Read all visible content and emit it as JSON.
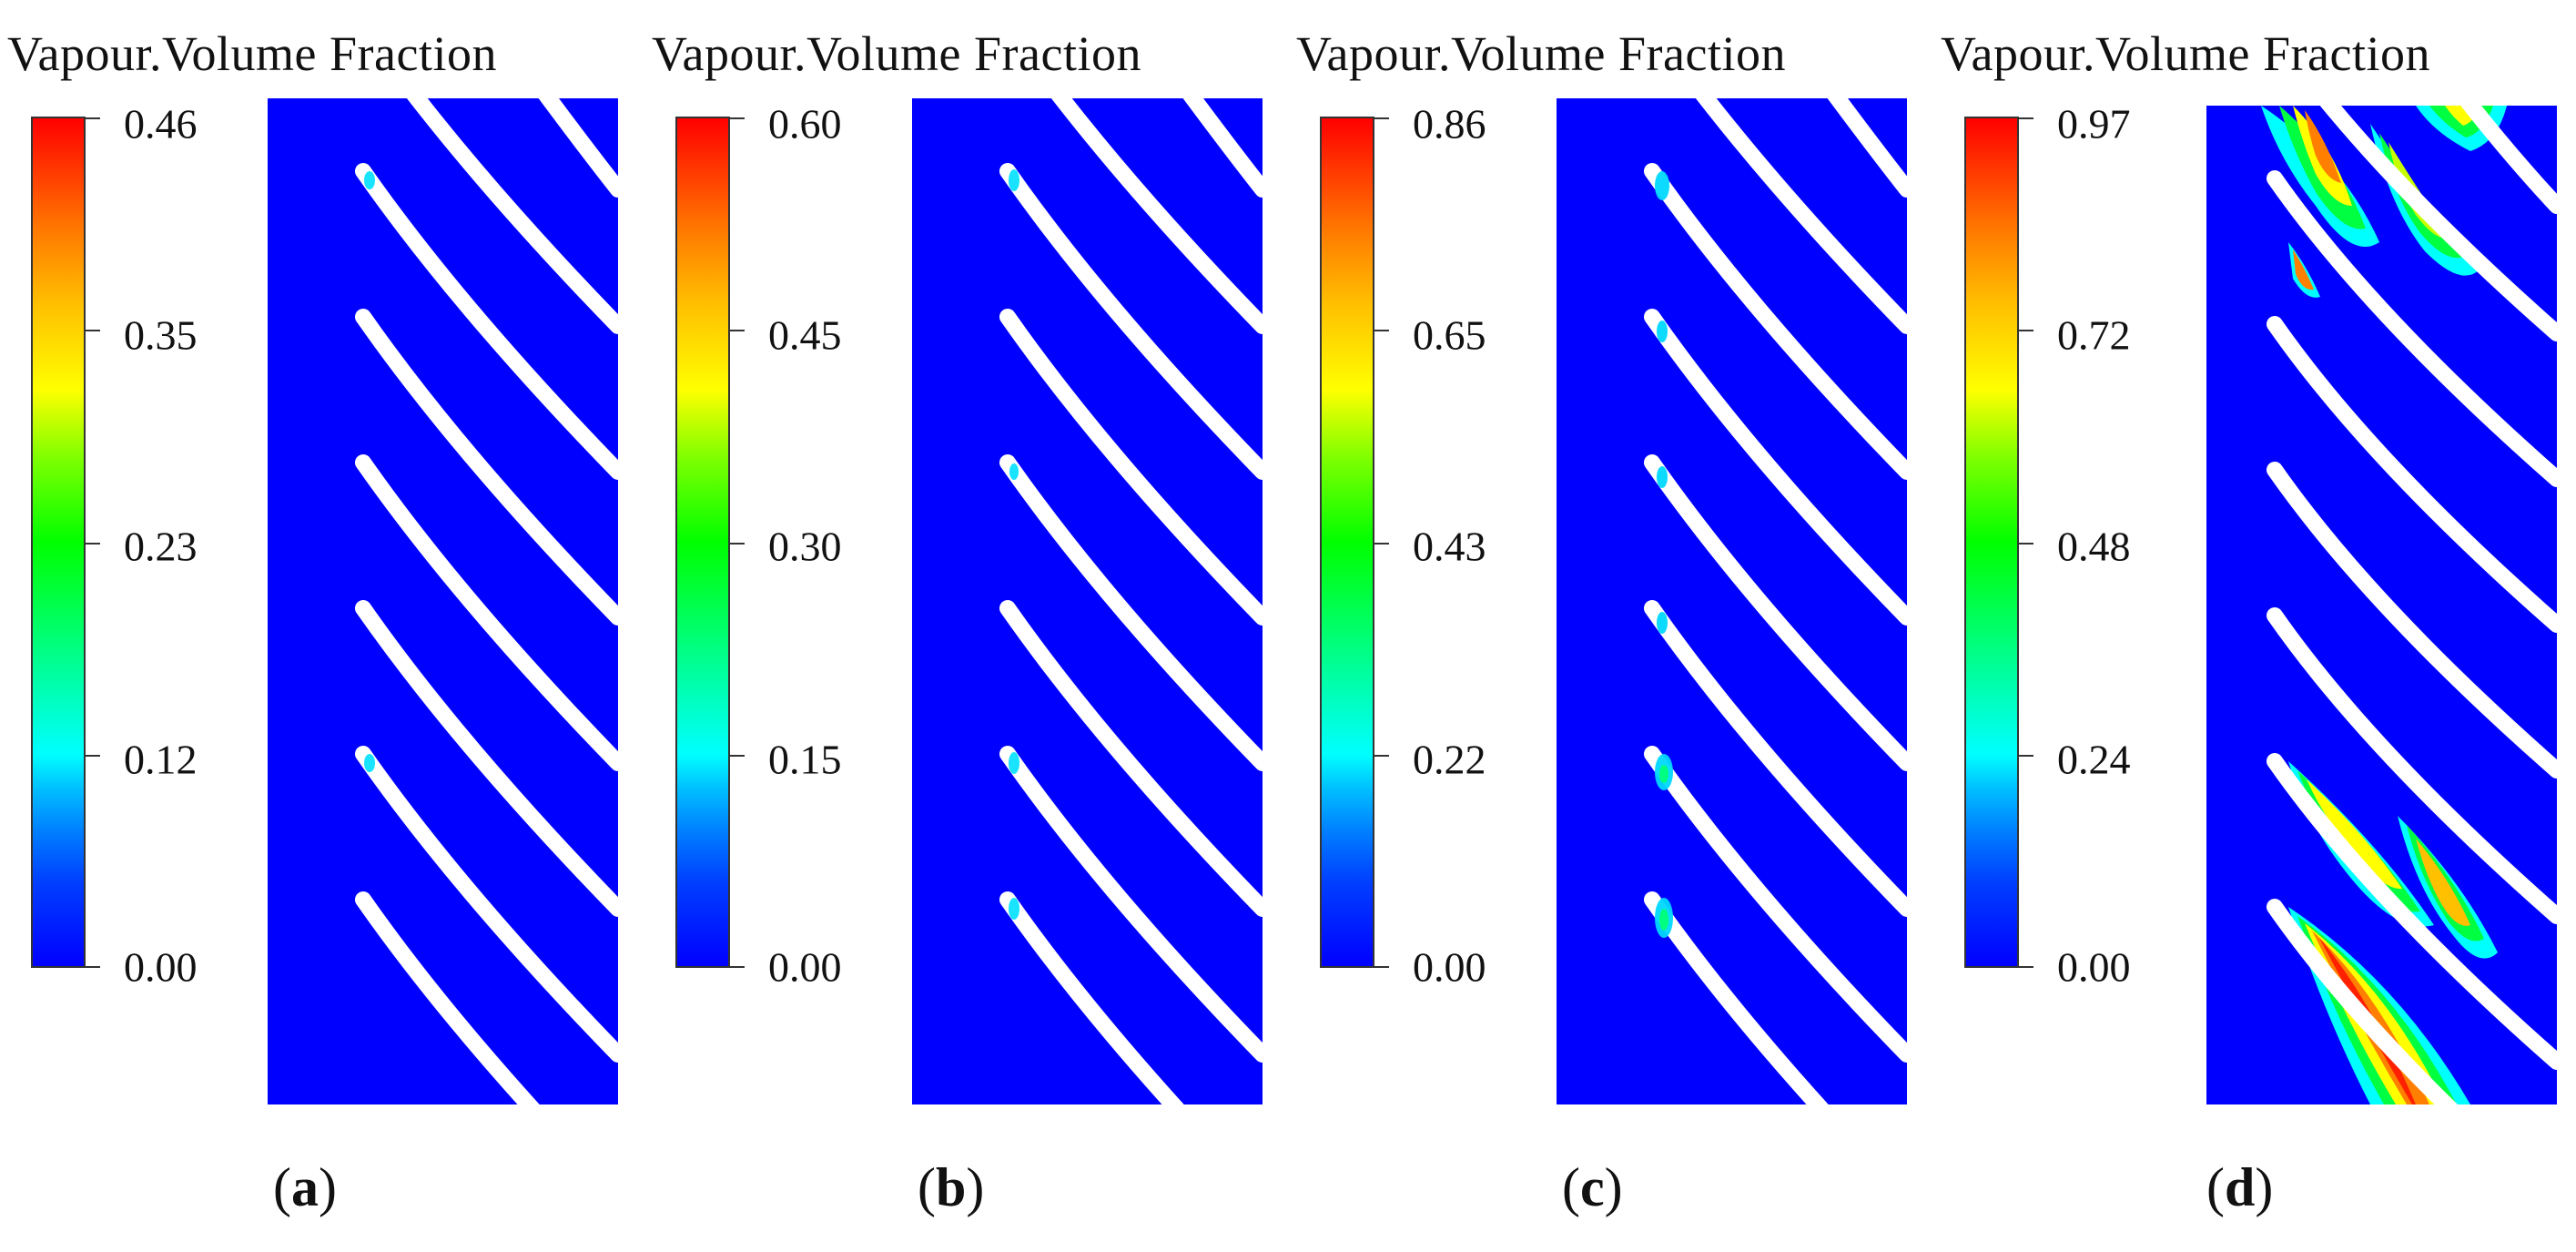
{
  "colorbar_gradient": [
    "#0000ff",
    "#00ffff",
    "#00ff00",
    "#ffff00",
    "#ff0000"
  ],
  "field_color": "#0000ff",
  "panels": [
    {
      "id": "a",
      "title": "Vapour.Volume Fraction",
      "ticks": [
        "0.46",
        "0.35",
        "0.23",
        "0.12",
        "0.00"
      ],
      "caption_open": "(",
      "caption_letter": "a",
      "caption_close": ")"
    },
    {
      "id": "b",
      "title": "Vapour.Volume Fraction",
      "ticks": [
        "0.60",
        "0.45",
        "0.30",
        "0.15",
        "0.00"
      ],
      "caption_open": "(",
      "caption_letter": "b",
      "caption_close": ")"
    },
    {
      "id": "c",
      "title": "Vapour.Volume Fraction",
      "ticks": [
        "0.86",
        "0.65",
        "0.43",
        "0.22",
        "0.00"
      ],
      "caption_open": "(",
      "caption_letter": "c",
      "caption_close": ")"
    },
    {
      "id": "d",
      "title": "Vapour.Volume Fraction",
      "ticks": [
        "0.97",
        "0.72",
        "0.48",
        "0.24",
        "0.00"
      ],
      "caption_open": "(",
      "caption_letter": "d",
      "caption_close": ")"
    }
  ]
}
